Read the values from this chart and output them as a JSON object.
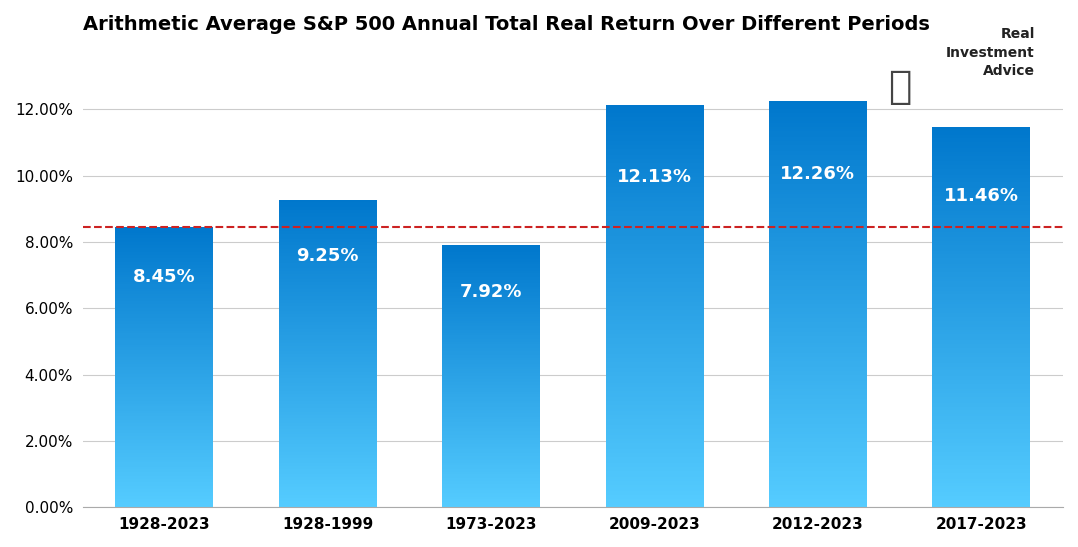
{
  "title": "Arithmetic Average S&P 500 Annual Total Real Return Over Different Periods",
  "categories": [
    "1928-2023",
    "1928-1999",
    "1973-2023",
    "2009-2023",
    "2012-2023",
    "2017-2023"
  ],
  "values": [
    0.0845,
    0.0925,
    0.0792,
    0.1213,
    0.1226,
    0.1146
  ],
  "labels": [
    "8.45%",
    "9.25%",
    "7.92%",
    "12.13%",
    "12.26%",
    "11.46%"
  ],
  "dashed_line_y": 0.0845,
  "bar_color_top": "#0077cc",
  "bar_color_bottom": "#55ccff",
  "dashed_line_color": "#cc2222",
  "label_color": "#ffffff",
  "background_color": "#ffffff",
  "grid_color": "#cccccc",
  "title_fontsize": 14,
  "label_fontsize": 13,
  "tick_fontsize": 11,
  "ylim": [
    0,
    0.138
  ],
  "yticks": [
    0.0,
    0.02,
    0.04,
    0.06,
    0.08,
    0.1,
    0.12
  ],
  "logo_text": "Real\nInvestment\nAdvice",
  "bar_width": 0.6
}
